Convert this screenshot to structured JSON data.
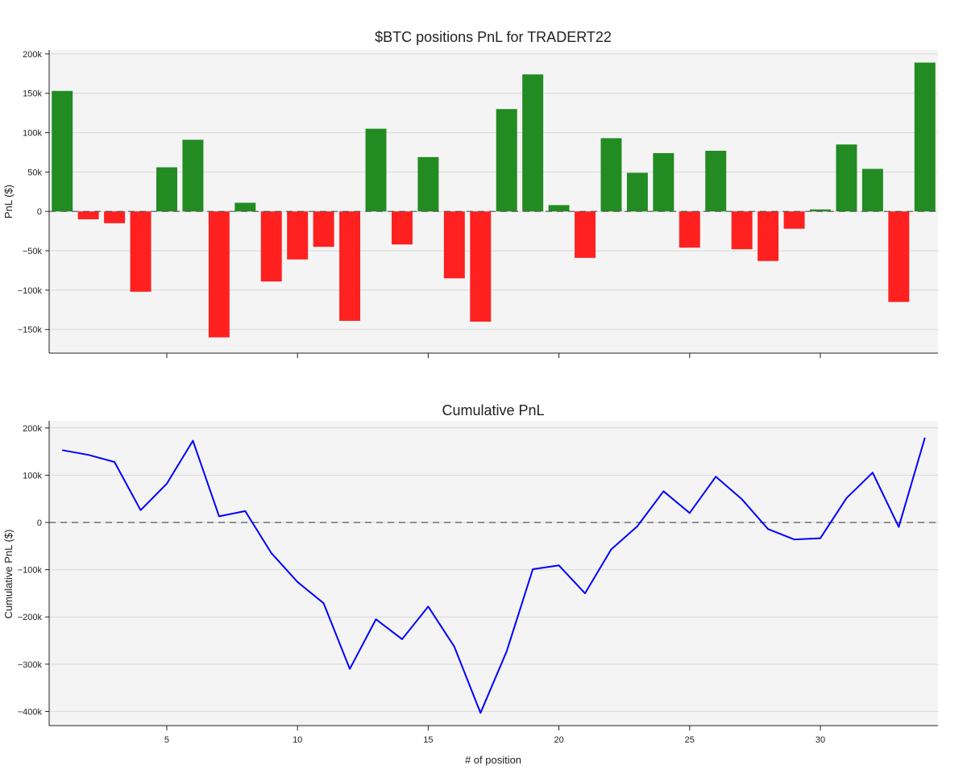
{
  "chart_data": [
    {
      "type": "bar",
      "title": "$BTC positions PnL for TRADERT22",
      "xlabel": "",
      "ylabel": "PnL ($)",
      "ylim": [
        -180000,
        205000
      ],
      "xlim": [
        0.5,
        34.5
      ],
      "grid": true,
      "zero_line": "dashed",
      "colors": {
        "positive": "#228B22",
        "negative": "#FF2020",
        "plot_bg": "#f4f4f4",
        "grid": "#d8d8d8"
      },
      "x": [
        1,
        2,
        3,
        4,
        5,
        6,
        7,
        8,
        9,
        10,
        11,
        12,
        13,
        14,
        15,
        16,
        17,
        18,
        19,
        20,
        21,
        22,
        23,
        24,
        25,
        26,
        27,
        28,
        29,
        30,
        31,
        32,
        33,
        34
      ],
      "values": [
        153000,
        -10000,
        -15000,
        -102000,
        56000,
        91000,
        -160000,
        11000,
        -89000,
        -61000,
        -45000,
        -139000,
        105000,
        -42000,
        69000,
        -85000,
        -140000,
        130000,
        174000,
        8000,
        -59000,
        93000,
        49000,
        74000,
        -46000,
        77000,
        -48000,
        -63000,
        -22000,
        2500,
        85000,
        54000,
        -115000,
        189000
      ],
      "yticks": [
        -150000,
        -100000,
        -50000,
        0,
        50000,
        100000,
        150000,
        200000
      ],
      "ytick_labels": [
        "−150k",
        "−100k",
        "−50k",
        "0",
        "50k",
        "100k",
        "150k",
        "200k"
      ],
      "xticks": [
        5,
        10,
        15,
        20,
        25,
        30
      ]
    },
    {
      "type": "line",
      "title": "Cumulative PnL",
      "xlabel": "# of position",
      "ylabel": "Cumulative PnL ($)",
      "ylim": [
        -430000,
        215000
      ],
      "xlim": [
        0.5,
        34.5
      ],
      "grid": true,
      "zero_line": "dashed",
      "colors": {
        "line": "#0000FF",
        "plot_bg": "#f4f4f4",
        "grid": "#d8d8d8"
      },
      "x": [
        1,
        2,
        3,
        4,
        5,
        6,
        7,
        8,
        9,
        10,
        11,
        12,
        13,
        14,
        15,
        16,
        17,
        18,
        19,
        20,
        21,
        22,
        23,
        24,
        25,
        26,
        27,
        28,
        29,
        30,
        31,
        32,
        33,
        34
      ],
      "values": [
        153000,
        143000,
        128000,
        26000,
        82000,
        173000,
        13000,
        24000,
        -65000,
        -126000,
        -171000,
        -310000,
        -205000,
        -247000,
        -178000,
        -263000,
        -403000,
        -273000,
        -99000,
        -91000,
        -150000,
        -57000,
        -8000,
        66000,
        20000,
        97000,
        49000,
        -14000,
        -36000,
        -33500,
        51500,
        105500,
        -9500,
        179500
      ],
      "yticks": [
        -400000,
        -300000,
        -200000,
        -100000,
        0,
        100000,
        200000
      ],
      "ytick_labels": [
        "−400k",
        "−300k",
        "−200k",
        "−100k",
        "0",
        "100k",
        "200k"
      ],
      "xticks": [
        5,
        10,
        15,
        20,
        25,
        30
      ],
      "xtick_labels": [
        "5",
        "10",
        "15",
        "20",
        "25",
        "30"
      ]
    }
  ]
}
